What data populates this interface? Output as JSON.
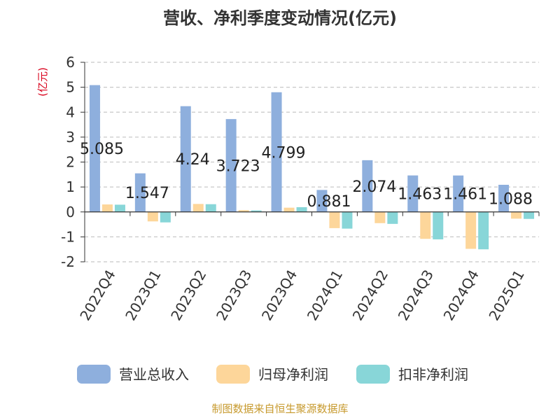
{
  "chart_data": {
    "type": "bar",
    "title": "营收、净利季度变动情况(亿元)",
    "ylabel": "(亿元)",
    "ylim": [
      -2,
      6
    ],
    "yticks": [
      -2,
      -1,
      0,
      1,
      2,
      3,
      4,
      5,
      6
    ],
    "grid": true,
    "legend_position": "bottom",
    "categories": [
      "2022Q4",
      "2023Q1",
      "2023Q2",
      "2023Q3",
      "2023Q4",
      "2024Q1",
      "2024Q2",
      "2024Q3",
      "2024Q4",
      "2025Q1"
    ],
    "series": [
      {
        "name": "营业总收入",
        "color": "#8eafdd",
        "values": [
          5.085,
          1.547,
          4.24,
          3.723,
          4.799,
          0.881,
          2.074,
          1.463,
          1.461,
          1.088
        ],
        "labels": [
          "5.085",
          "1.547",
          "4.24",
          "3.723",
          "4.799",
          "0.881",
          "2.074",
          "1.463",
          "1.461",
          "1.088"
        ]
      },
      {
        "name": "归母净利润",
        "color": "#fdd69a",
        "values": [
          0.3,
          -0.38,
          0.32,
          0.07,
          0.17,
          -0.65,
          -0.45,
          -1.08,
          -1.48,
          -0.27
        ]
      },
      {
        "name": "扣非净利润",
        "color": "#88d6d8",
        "values": [
          0.29,
          -0.42,
          0.31,
          0.06,
          0.19,
          -0.67,
          -0.48,
          -1.1,
          -1.5,
          -0.28
        ]
      }
    ]
  },
  "source": "制图数据来自恒生聚源数据库"
}
